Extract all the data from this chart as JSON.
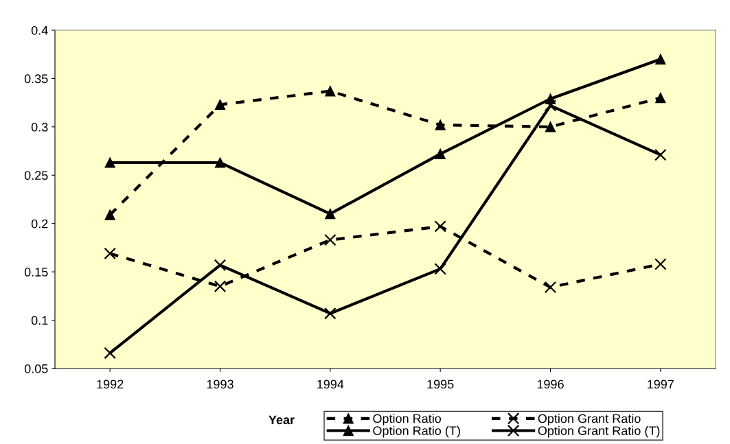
{
  "chart_data": {
    "type": "line",
    "xlabel": "Year",
    "categories": [
      "1992",
      "1993",
      "1994",
      "1995",
      "1996",
      "1997"
    ],
    "series": [
      {
        "name": "Option Ratio",
        "color": "#000000",
        "marker": "triangle",
        "line_style": "dashed",
        "values": [
          0.209,
          0.323,
          0.337,
          0.302,
          0.3,
          0.33
        ]
      },
      {
        "name": "Option Grant Ratio",
        "color": "#000000",
        "marker": "cross",
        "line_style": "dashed",
        "values": [
          0.169,
          0.135,
          0.183,
          0.197,
          0.134,
          0.158
        ]
      },
      {
        "name": "Option Ratio (T)",
        "color": "#000000",
        "marker": "triangle",
        "line_style": "solid",
        "values": [
          0.263,
          0.263,
          0.21,
          0.272,
          0.329,
          0.37
        ]
      },
      {
        "name": "Option Grant Ratio (T)",
        "color": "#000000",
        "marker": "cross",
        "line_style": "solid",
        "values": [
          0.066,
          0.157,
          0.107,
          0.153,
          0.322,
          0.271
        ]
      }
    ],
    "ylim": [
      0.05,
      0.4
    ],
    "yticks": [
      0.05,
      0.1,
      0.15,
      0.2,
      0.25,
      0.3,
      0.35,
      0.4
    ],
    "grid": false,
    "legend": "bottom"
  }
}
